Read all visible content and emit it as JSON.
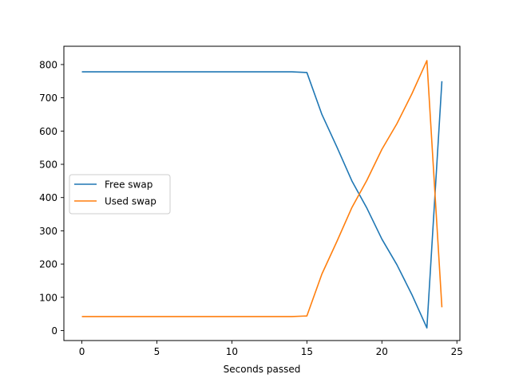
{
  "chart_data": {
    "type": "line",
    "title": "",
    "xlabel": "Seconds passed",
    "ylabel": "",
    "xlim": [
      -1.2,
      25.2
    ],
    "ylim": [
      -30,
      855
    ],
    "xticks": [
      0,
      5,
      10,
      15,
      20,
      25
    ],
    "yticks": [
      0,
      100,
      200,
      300,
      400,
      500,
      600,
      700,
      800
    ],
    "grid": false,
    "legend": {
      "placement": "center-left"
    },
    "x": [
      0,
      1,
      2,
      3,
      4,
      5,
      6,
      7,
      8,
      9,
      10,
      11,
      12,
      13,
      14,
      15,
      16,
      17,
      18,
      19,
      20,
      21,
      22,
      23,
      24
    ],
    "series": [
      {
        "name": "Free swap",
        "color": "#1f77b4",
        "values": [
          778,
          778,
          778,
          778,
          778,
          778,
          778,
          778,
          778,
          778,
          778,
          778,
          778,
          778,
          778,
          776,
          650,
          552,
          450,
          368,
          275,
          198,
          108,
          8,
          750
        ]
      },
      {
        "name": "Used swap",
        "color": "#ff7f0e",
        "values": [
          42,
          42,
          42,
          42,
          42,
          42,
          42,
          42,
          42,
          42,
          42,
          42,
          42,
          42,
          42,
          44,
          170,
          268,
          370,
          452,
          545,
          622,
          712,
          812,
          70
        ]
      }
    ]
  }
}
